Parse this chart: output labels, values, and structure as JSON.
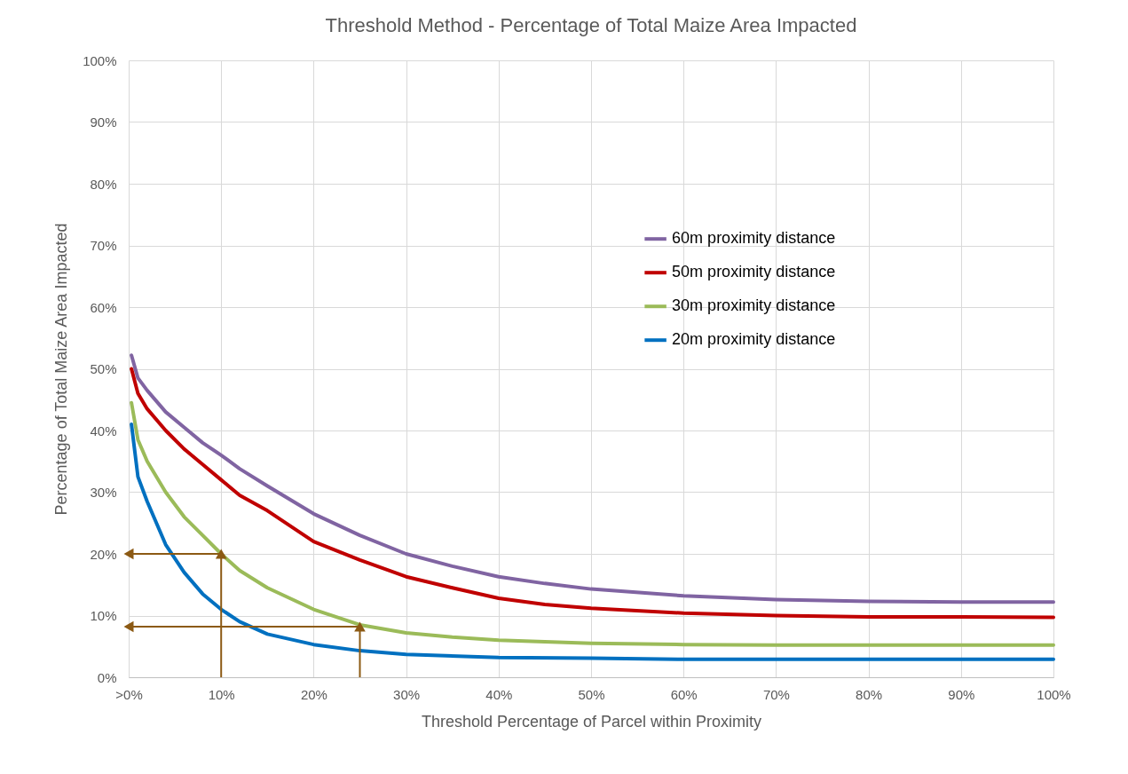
{
  "chart_data": {
    "type": "line",
    "title": "Threshold Method - Percentage of Total Maize Area Impacted",
    "xlabel": "Threshold Percentage of Parcel within Proximity",
    "ylabel": "Percentage of Total Maize Area Impacted",
    "series": [
      {
        "name": "60m proximity distance",
        "color": "#8064a2",
        "x": [
          0.3,
          1,
          2,
          4,
          6,
          8,
          10,
          12,
          15,
          20,
          25,
          30,
          35,
          40,
          45,
          50,
          60,
          70,
          80,
          90,
          100
        ],
        "values": [
          52.2,
          48.5,
          46.5,
          43,
          40.5,
          38,
          36,
          33.8,
          31,
          26.5,
          23,
          20,
          18,
          16.3,
          15.2,
          14.3,
          13.2,
          12.6,
          12.3,
          12.2,
          12.2
        ]
      },
      {
        "name": "50m proximity distance",
        "color": "#c00000",
        "x": [
          0.3,
          1,
          2,
          4,
          6,
          8,
          10,
          12,
          15,
          20,
          25,
          30,
          35,
          40,
          45,
          50,
          60,
          70,
          80,
          90,
          100
        ],
        "values": [
          50,
          46,
          43.5,
          40,
          37,
          34.5,
          32,
          29.5,
          27,
          22,
          19,
          16.3,
          14.5,
          12.8,
          11.8,
          11.2,
          10.4,
          10,
          9.8,
          9.8,
          9.7
        ]
      },
      {
        "name": "30m proximity distance",
        "color": "#9bbb59",
        "x": [
          0.3,
          1,
          2,
          4,
          6,
          8,
          10,
          12,
          15,
          20,
          25,
          30,
          35,
          40,
          50,
          60,
          70,
          80,
          90,
          100
        ],
        "values": [
          44.5,
          38.5,
          35,
          30,
          26,
          23,
          20,
          17.3,
          14.5,
          11,
          8.5,
          7.2,
          6.5,
          6,
          5.5,
          5.3,
          5.2,
          5.2,
          5.2,
          5.2
        ]
      },
      {
        "name": "20m proximity distance",
        "color": "#0070c0",
        "x": [
          0.3,
          1,
          2,
          4,
          6,
          8,
          10,
          12,
          15,
          20,
          25,
          30,
          40,
          50,
          60,
          70,
          80,
          90,
          100
        ],
        "values": [
          41,
          32.5,
          28.5,
          21.5,
          17,
          13.5,
          11,
          9,
          7,
          5.3,
          4.3,
          3.7,
          3.2,
          3.1,
          2.9,
          2.9,
          2.9,
          2.9,
          2.9
        ]
      }
    ],
    "xlim": [
      0,
      100
    ],
    "xticks": [
      {
        "value": 0,
        "label": ">0%"
      },
      {
        "value": 10,
        "label": "10%"
      },
      {
        "value": 20,
        "label": "20%"
      },
      {
        "value": 30,
        "label": "30%"
      },
      {
        "value": 40,
        "label": "40%"
      },
      {
        "value": 50,
        "label": "50%"
      },
      {
        "value": 60,
        "label": "60%"
      },
      {
        "value": 70,
        "label": "70%"
      },
      {
        "value": 80,
        "label": "80%"
      },
      {
        "value": 90,
        "label": "90%"
      },
      {
        "value": 100,
        "label": "100%"
      }
    ],
    "ylim": [
      0,
      100
    ],
    "yticks": [
      {
        "value": 0,
        "label": "0%"
      },
      {
        "value": 10,
        "label": "10%"
      },
      {
        "value": 20,
        "label": "20%"
      },
      {
        "value": 30,
        "label": "30%"
      },
      {
        "value": 40,
        "label": "40%"
      },
      {
        "value": 50,
        "label": "50%"
      },
      {
        "value": 60,
        "label": "60%"
      },
      {
        "value": 70,
        "label": "70%"
      },
      {
        "value": 80,
        "label": "80%"
      },
      {
        "value": 90,
        "label": "90%"
      },
      {
        "value": 100,
        "label": "100%"
      }
    ],
    "grid": true,
    "legend": "right",
    "marker": "none",
    "line_style": "solid"
  }
}
